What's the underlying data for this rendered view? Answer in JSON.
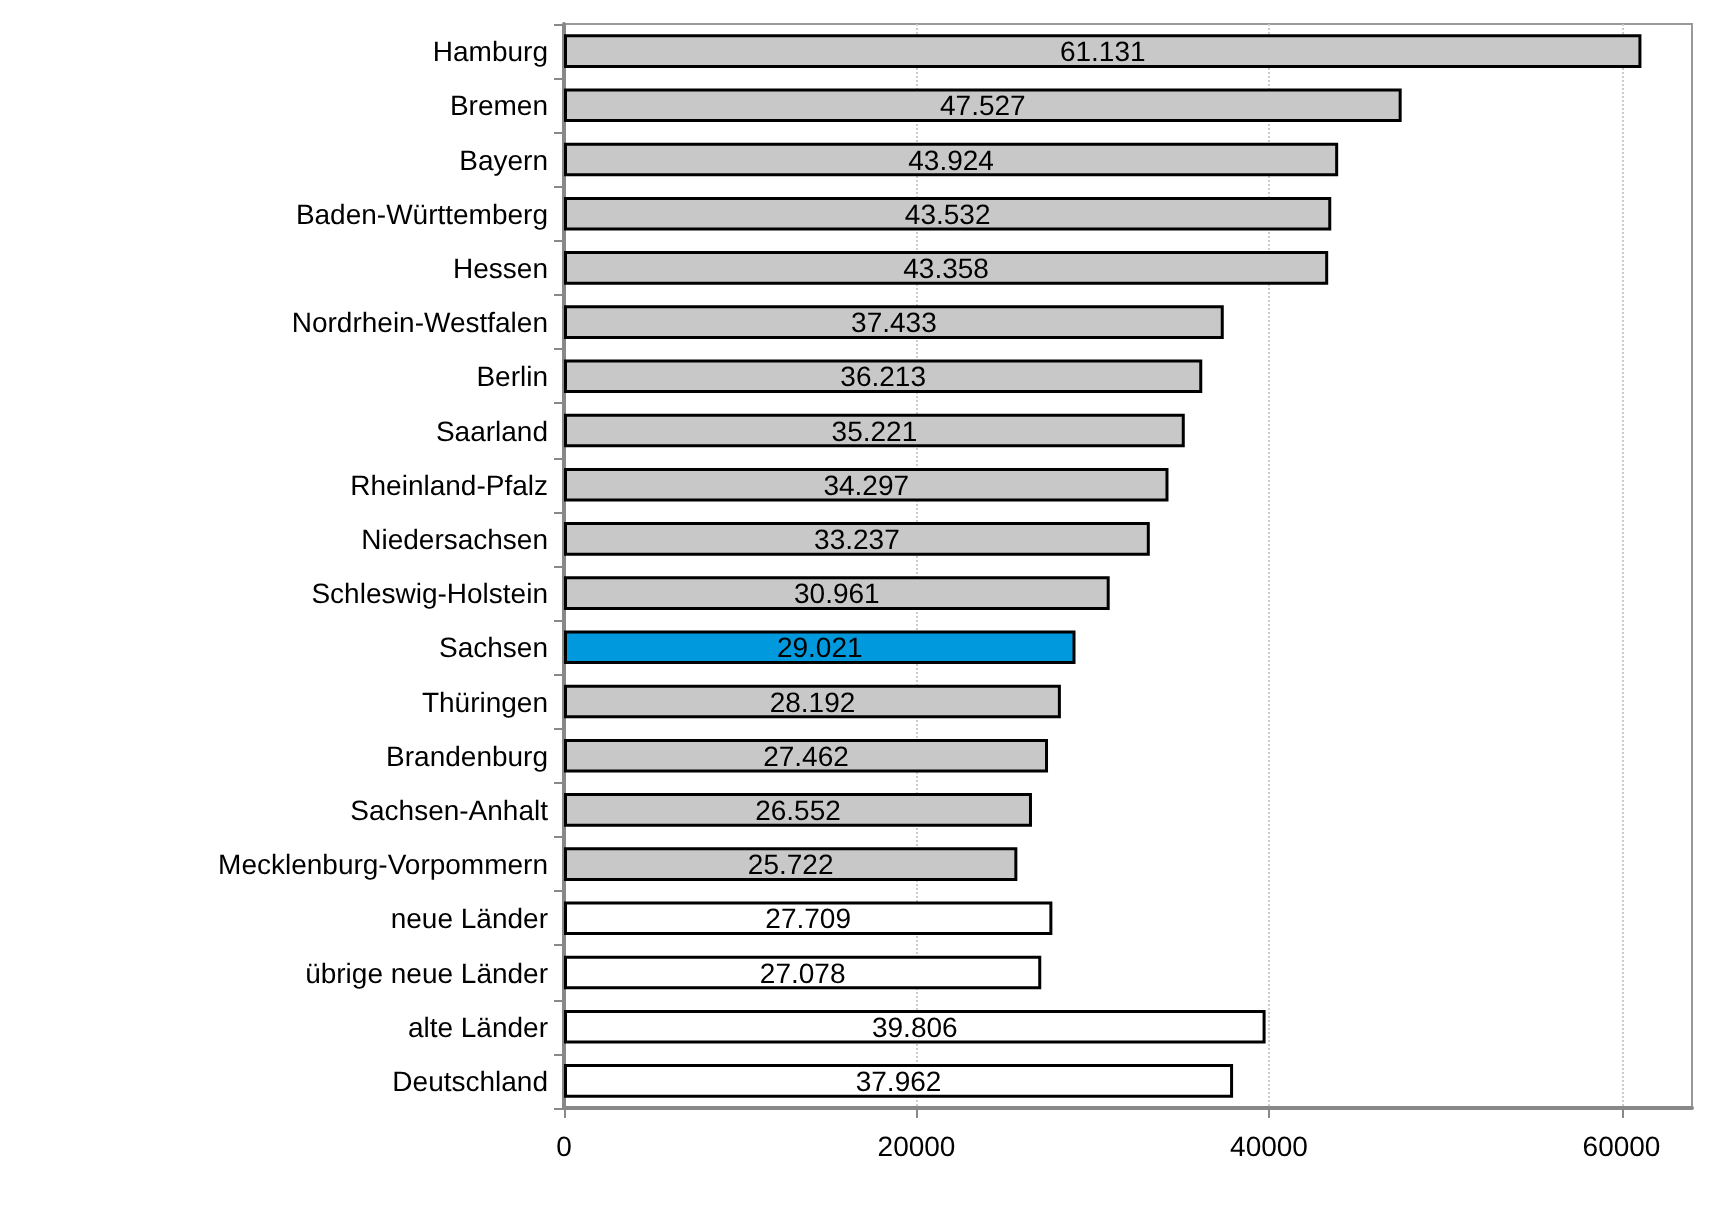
{
  "chart_data": {
    "type": "bar",
    "orientation": "horizontal",
    "categories": [
      "Hamburg",
      "Bremen",
      "Bayern",
      "Baden-Württemberg",
      "Hessen",
      "Nordrhein-Westfalen",
      "Berlin",
      "Saarland",
      "Rheinland-Pfalz",
      "Niedersachsen",
      "Schleswig-Holstein",
      "Sachsen",
      "Thüringen",
      "Brandenburg",
      "Sachsen-Anhalt",
      "Mecklenburg-Vorpommern",
      "neue Länder",
      "übrige neue Länder",
      "alte Länder",
      "Deutschland"
    ],
    "values": [
      61131,
      47527,
      43924,
      43532,
      43358,
      37433,
      36213,
      35221,
      34297,
      33237,
      30961,
      29021,
      28192,
      27462,
      26552,
      25722,
      27709,
      27078,
      39806,
      37962
    ],
    "value_labels": [
      "61.131",
      "47.527",
      "43.924",
      "43.532",
      "43.358",
      "37.433",
      "36.213",
      "35.221",
      "34.297",
      "33.237",
      "30.961",
      "29.021",
      "28.192",
      "27.462",
      "26.552",
      "25.722",
      "27.709",
      "27.078",
      "39.806",
      "37.962"
    ],
    "colors": [
      "#c8c8c8",
      "#c8c8c8",
      "#c8c8c8",
      "#c8c8c8",
      "#c8c8c8",
      "#c8c8c8",
      "#c8c8c8",
      "#c8c8c8",
      "#c8c8c8",
      "#c8c8c8",
      "#c8c8c8",
      "#0099dd",
      "#c8c8c8",
      "#c8c8c8",
      "#c8c8c8",
      "#c8c8c8",
      "#ffffff",
      "#ffffff",
      "#ffffff",
      "#ffffff"
    ],
    "xlim": [
      0,
      64000
    ],
    "xticks": [
      0,
      20000,
      40000,
      60000
    ],
    "grid": "x"
  }
}
